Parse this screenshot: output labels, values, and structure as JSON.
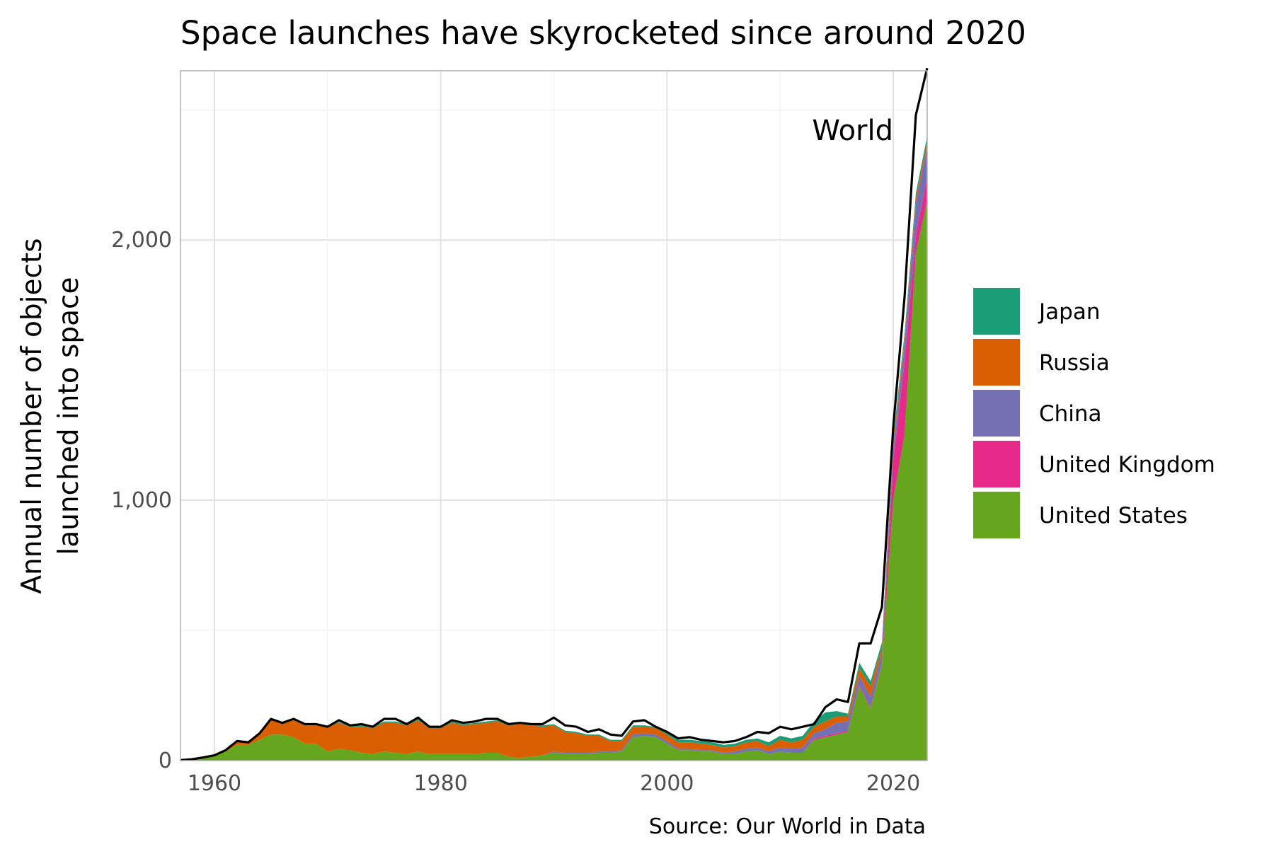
{
  "chart_data": {
    "type": "area",
    "stacked": true,
    "title": "Space launches have skyrocketed since around 2020",
    "ylabel_lines": [
      "Annual number of objects",
      "launched into space"
    ],
    "caption": "Source: Our World in Data",
    "annotation": "World",
    "xlim": [
      1957,
      2023
    ],
    "ylim": [
      0,
      2650
    ],
    "x_ticks": [
      1960,
      1980,
      2000,
      2020
    ],
    "x_tick_labels": [
      "1960",
      "1980",
      "2000",
      "2020"
    ],
    "y_ticks": [
      0,
      1000,
      2000
    ],
    "y_tick_labels": [
      "0",
      "1,000",
      "2,000"
    ],
    "grid": true,
    "legend_position": "right",
    "x": [
      1957,
      1958,
      1959,
      1960,
      1961,
      1962,
      1963,
      1964,
      1965,
      1966,
      1967,
      1968,
      1969,
      1970,
      1971,
      1972,
      1973,
      1974,
      1975,
      1976,
      1977,
      1978,
      1979,
      1980,
      1981,
      1982,
      1983,
      1984,
      1985,
      1986,
      1987,
      1988,
      1989,
      1990,
      1991,
      1992,
      1993,
      1994,
      1995,
      1996,
      1997,
      1998,
      1999,
      2000,
      2001,
      2002,
      2003,
      2004,
      2005,
      2006,
      2007,
      2008,
      2009,
      2010,
      2011,
      2012,
      2013,
      2014,
      2015,
      2016,
      2017,
      2018,
      2019,
      2020,
      2021,
      2022,
      2023
    ],
    "series": [
      {
        "name": "United States",
        "color": "#66a61e",
        "values": [
          0,
          2,
          10,
          20,
          35,
          60,
          60,
          80,
          100,
          100,
          90,
          65,
          65,
          35,
          45,
          40,
          30,
          25,
          35,
          30,
          25,
          35,
          25,
          25,
          25,
          25,
          25,
          30,
          30,
          15,
          10,
          15,
          20,
          30,
          25,
          25,
          25,
          30,
          30,
          35,
          90,
          95,
          90,
          65,
          40,
          40,
          35,
          35,
          25,
          25,
          35,
          40,
          25,
          35,
          30,
          30,
          80,
          90,
          100,
          110,
          285,
          200,
          370,
          1000,
          1250,
          1950,
          2150
        ]
      },
      {
        "name": "United Kingdom",
        "color": "#e7298a",
        "values": [
          0,
          0,
          0,
          0,
          0,
          0,
          0,
          0,
          0,
          0,
          0,
          0,
          0,
          0,
          0,
          0,
          0,
          0,
          0,
          0,
          0,
          0,
          0,
          0,
          0,
          0,
          0,
          0,
          0,
          0,
          0,
          0,
          0,
          0,
          0,
          0,
          0,
          0,
          0,
          0,
          0,
          0,
          0,
          0,
          0,
          0,
          0,
          0,
          0,
          0,
          0,
          0,
          0,
          0,
          0,
          0,
          5,
          5,
          5,
          5,
          5,
          5,
          5,
          150,
          280,
          70,
          90
        ]
      },
      {
        "name": "China",
        "color": "#7570b3",
        "values": [
          0,
          0,
          0,
          0,
          0,
          0,
          0,
          0,
          0,
          0,
          0,
          0,
          0,
          0,
          0,
          0,
          0,
          0,
          0,
          0,
          0,
          0,
          0,
          0,
          0,
          0,
          0,
          0,
          0,
          0,
          0,
          0,
          0,
          5,
          5,
          5,
          5,
          5,
          5,
          5,
          10,
          10,
          10,
          10,
          5,
          5,
          5,
          5,
          5,
          10,
          10,
          10,
          10,
          15,
          15,
          20,
          20,
          25,
          40,
          35,
          35,
          40,
          40,
          50,
          70,
          120,
          120
        ]
      },
      {
        "name": "Russia",
        "color": "#d95f02",
        "values": [
          0,
          2,
          2,
          0,
          5,
          15,
          15,
          25,
          55,
          45,
          65,
          70,
          70,
          95,
          100,
          90,
          100,
          100,
          110,
          115,
          110,
          120,
          100,
          100,
          120,
          110,
          115,
          115,
          120,
          120,
          130,
          120,
          110,
          100,
          80,
          75,
          65,
          60,
          40,
          35,
          30,
          25,
          25,
          25,
          25,
          25,
          25,
          20,
          20,
          20,
          25,
          25,
          20,
          30,
          25,
          30,
          25,
          30,
          25,
          20,
          30,
          40,
          20,
          20,
          20,
          20,
          20
        ]
      },
      {
        "name": "Japan",
        "color": "#1b9e77",
        "values": [
          0,
          0,
          0,
          0,
          0,
          0,
          0,
          0,
          0,
          0,
          2,
          2,
          2,
          3,
          3,
          3,
          5,
          5,
          5,
          5,
          5,
          5,
          5,
          5,
          5,
          5,
          5,
          5,
          5,
          5,
          5,
          5,
          5,
          5,
          5,
          5,
          5,
          5,
          5,
          5,
          5,
          5,
          5,
          10,
          10,
          10,
          10,
          10,
          10,
          10,
          10,
          10,
          15,
          15,
          15,
          15,
          20,
          35,
          20,
          10,
          20,
          20,
          20,
          20,
          20,
          20,
          20
        ]
      }
    ],
    "world": {
      "name": "World",
      "color": "#000000",
      "values": [
        2,
        5,
        12,
        20,
        40,
        75,
        70,
        105,
        160,
        145,
        160,
        140,
        140,
        130,
        155,
        135,
        140,
        130,
        160,
        160,
        140,
        165,
        130,
        130,
        155,
        145,
        150,
        160,
        160,
        140,
        145,
        140,
        140,
        165,
        135,
        130,
        110,
        120,
        100,
        95,
        150,
        155,
        130,
        110,
        85,
        90,
        80,
        75,
        70,
        75,
        90,
        110,
        105,
        130,
        120,
        130,
        140,
        205,
        235,
        225,
        450,
        450,
        590,
        1280,
        1780,
        2480,
        2660
      ]
    }
  }
}
